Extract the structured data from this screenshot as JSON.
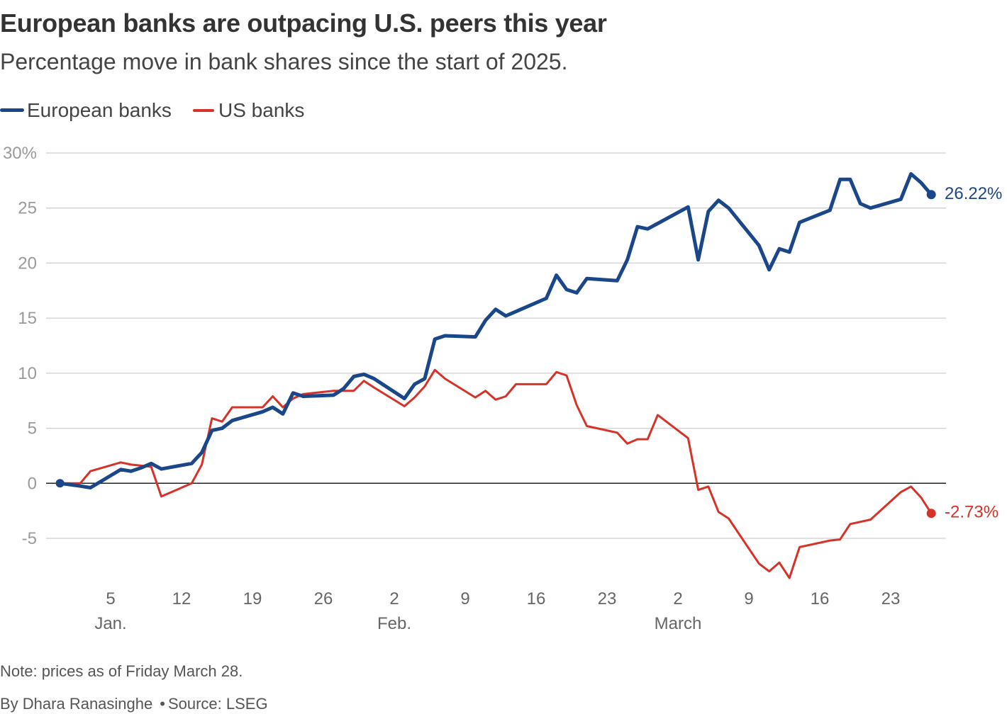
{
  "chart_data": {
    "type": "line",
    "title": "European banks are outpacing U.S. peers this year",
    "subtitle": "Percentage move in bank shares since the start of 2025.",
    "xlabel": "",
    "ylabel": "",
    "ylim": [
      -5,
      30
    ],
    "grid": true,
    "yticks": [
      {
        "value": 30,
        "label": "30%"
      },
      {
        "value": 25,
        "label": "25"
      },
      {
        "value": 20,
        "label": "20"
      },
      {
        "value": 15,
        "label": "15"
      },
      {
        "value": 10,
        "label": "10"
      },
      {
        "value": 5,
        "label": "5"
      },
      {
        "value": 0,
        "label": "0"
      },
      {
        "value": -5,
        "label": "-5"
      }
    ],
    "xticks": [
      {
        "date": "2025-01-05",
        "label": "5"
      },
      {
        "date": "2025-01-12",
        "label": "12"
      },
      {
        "date": "2025-01-19",
        "label": "19"
      },
      {
        "date": "2025-01-26",
        "label": "26"
      },
      {
        "date": "2025-02-02",
        "label": "2"
      },
      {
        "date": "2025-02-09",
        "label": "9"
      },
      {
        "date": "2025-02-16",
        "label": "16"
      },
      {
        "date": "2025-02-23",
        "label": "23"
      },
      {
        "date": "2025-03-02",
        "label": "2"
      },
      {
        "date": "2025-03-09",
        "label": "9"
      },
      {
        "date": "2025-03-16",
        "label": "16"
      },
      {
        "date": "2025-03-23",
        "label": "23"
      }
    ],
    "month_labels": [
      {
        "date": "2025-01-05",
        "label": "Jan."
      },
      {
        "date": "2025-02-02",
        "label": "Feb."
      },
      {
        "date": "2025-03-02",
        "label": "March"
      }
    ],
    "dates": [
      "2024-12-31",
      "2025-01-02",
      "2025-01-03",
      "2025-01-06",
      "2025-01-07",
      "2025-01-08",
      "2025-01-09",
      "2025-01-10",
      "2025-01-13",
      "2025-01-14",
      "2025-01-15",
      "2025-01-16",
      "2025-01-17",
      "2025-01-20",
      "2025-01-21",
      "2025-01-22",
      "2025-01-23",
      "2025-01-24",
      "2025-01-27",
      "2025-01-28",
      "2025-01-29",
      "2025-01-30",
      "2025-01-31",
      "2025-02-03",
      "2025-02-04",
      "2025-02-05",
      "2025-02-06",
      "2025-02-07",
      "2025-02-10",
      "2025-02-11",
      "2025-02-12",
      "2025-02-13",
      "2025-02-14",
      "2025-02-17",
      "2025-02-18",
      "2025-02-19",
      "2025-02-20",
      "2025-02-21",
      "2025-02-24",
      "2025-02-25",
      "2025-02-26",
      "2025-02-27",
      "2025-02-28",
      "2025-03-03",
      "2025-03-04",
      "2025-03-05",
      "2025-03-06",
      "2025-03-07",
      "2025-03-10",
      "2025-03-11",
      "2025-03-12",
      "2025-03-13",
      "2025-03-14",
      "2025-03-17",
      "2025-03-18",
      "2025-03-19",
      "2025-03-20",
      "2025-03-21",
      "2025-03-24",
      "2025-03-25",
      "2025-03-26",
      "2025-03-27"
    ],
    "series": [
      {
        "name": "European banks",
        "color": "#1a468a",
        "end_label": "26.22%",
        "values": [
          0,
          -0.25,
          -0.4,
          1.25,
          1.1,
          1.4,
          1.8,
          1.3,
          1.8,
          2.8,
          4.8,
          5.0,
          5.7,
          6.5,
          6.9,
          6.3,
          8.2,
          7.9,
          8.0,
          8.6,
          9.7,
          9.9,
          9.5,
          7.7,
          9.0,
          9.5,
          13.1,
          13.4,
          13.3,
          14.8,
          15.8,
          15.2,
          15.6,
          16.8,
          18.9,
          17.6,
          17.3,
          18.6,
          18.4,
          20.3,
          23.3,
          23.1,
          23.6,
          25.1,
          20.3,
          24.7,
          25.7,
          25.0,
          21.6,
          19.4,
          21.3,
          21.0,
          23.7,
          24.8,
          27.6,
          27.6,
          25.4,
          25.0,
          25.8,
          28.1,
          27.3,
          26.22
        ]
      },
      {
        "name": "US banks",
        "color": "#d63228",
        "end_label": "-2.73%",
        "values": [
          0,
          0,
          1.1,
          1.9,
          1.7,
          1.6,
          1.5,
          -1.2,
          0.0,
          1.7,
          5.9,
          5.6,
          6.9,
          6.9,
          7.9,
          6.9,
          7.7,
          8.1,
          8.4,
          8.4,
          8.4,
          9.3,
          8.7,
          7.0,
          7.8,
          8.8,
          10.3,
          9.5,
          7.8,
          8.4,
          7.6,
          7.9,
          9.0,
          9.0,
          10.1,
          9.8,
          7.1,
          5.2,
          4.6,
          3.6,
          4.0,
          4.0,
          6.2,
          4.1,
          -0.6,
          -0.3,
          -2.6,
          -3.2,
          -7.3,
          -8.0,
          -7.2,
          -8.6,
          -5.8,
          -5.2,
          -5.1,
          -3.7,
          -3.5,
          -3.3,
          -0.8,
          -0.3,
          -1.3,
          -2.73
        ]
      }
    ]
  },
  "footer": {
    "note": "Note: prices as of Friday March 28.",
    "byline": "By Dhara Ranasinghe",
    "separator": "•",
    "source": "Source: LSEG"
  }
}
